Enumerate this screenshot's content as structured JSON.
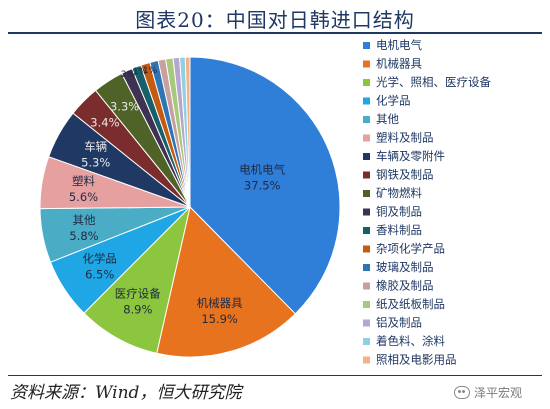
{
  "title": "图表20：中国对日韩进口结构",
  "source": "资料来源：Wind，恒大研究院",
  "watermark": "泽平宏观",
  "chart_data": {
    "type": "pie",
    "legend_position": "right",
    "slices": [
      {
        "name": "电机电气",
        "value": 37.5,
        "label": "37.5%",
        "color": "#2f7ed8"
      },
      {
        "name": "机械器具",
        "value": 15.9,
        "label": "15.9%",
        "color": "#e8731f"
      },
      {
        "name": "光学、照相、医疗设备",
        "value": 8.9,
        "label": "8.9%",
        "color": "#8cc63f"
      },
      {
        "name": "化学品",
        "value": 6.5,
        "label": "6.5%",
        "color": "#1ea7e4"
      },
      {
        "name": "其他",
        "value": 5.8,
        "label": "5.8%",
        "color": "#4bacc6"
      },
      {
        "name": "塑料及制品",
        "value": 5.6,
        "label": "5.6%",
        "color": "#e6a0a0"
      },
      {
        "name": "车辆及零附件",
        "value": 5.3,
        "label": "5.3%",
        "color": "#1f3864"
      },
      {
        "name": "钢铁及制品",
        "value": 3.4,
        "label": "3.4%",
        "color": "#7b2c2c"
      },
      {
        "name": "矿物燃料",
        "value": 3.3,
        "label": "3.3%",
        "color": "#4f6228"
      },
      {
        "name": "铜及制品",
        "value": 1.2,
        "label": "",
        "color": "#3f3151"
      },
      {
        "name": "香料制品",
        "value": 1.0,
        "label": "",
        "color": "#17606b"
      },
      {
        "name": "杂项化学产品",
        "value": 1.0,
        "label": "",
        "color": "#c55a11"
      },
      {
        "name": "玻璃及制品",
        "value": 0.9,
        "label": "",
        "color": "#2e75b6"
      },
      {
        "name": "橡胶及制品",
        "value": 0.8,
        "label": "",
        "color": "#c9a0a0"
      },
      {
        "name": "纸及纸板制品",
        "value": 0.8,
        "label": "",
        "color": "#a9c97a"
      },
      {
        "name": "铝及制品",
        "value": 0.7,
        "label": "",
        "color": "#b7a6d0"
      },
      {
        "name": "着色料、涂料",
        "value": 0.6,
        "label": "",
        "color": "#8fd0e3"
      },
      {
        "name": "照相及电影用品",
        "value": 0.5,
        "label": "",
        "color": "#f4b183"
      }
    ],
    "small_labels": [
      "2%",
      "1%",
      "1%"
    ]
  }
}
